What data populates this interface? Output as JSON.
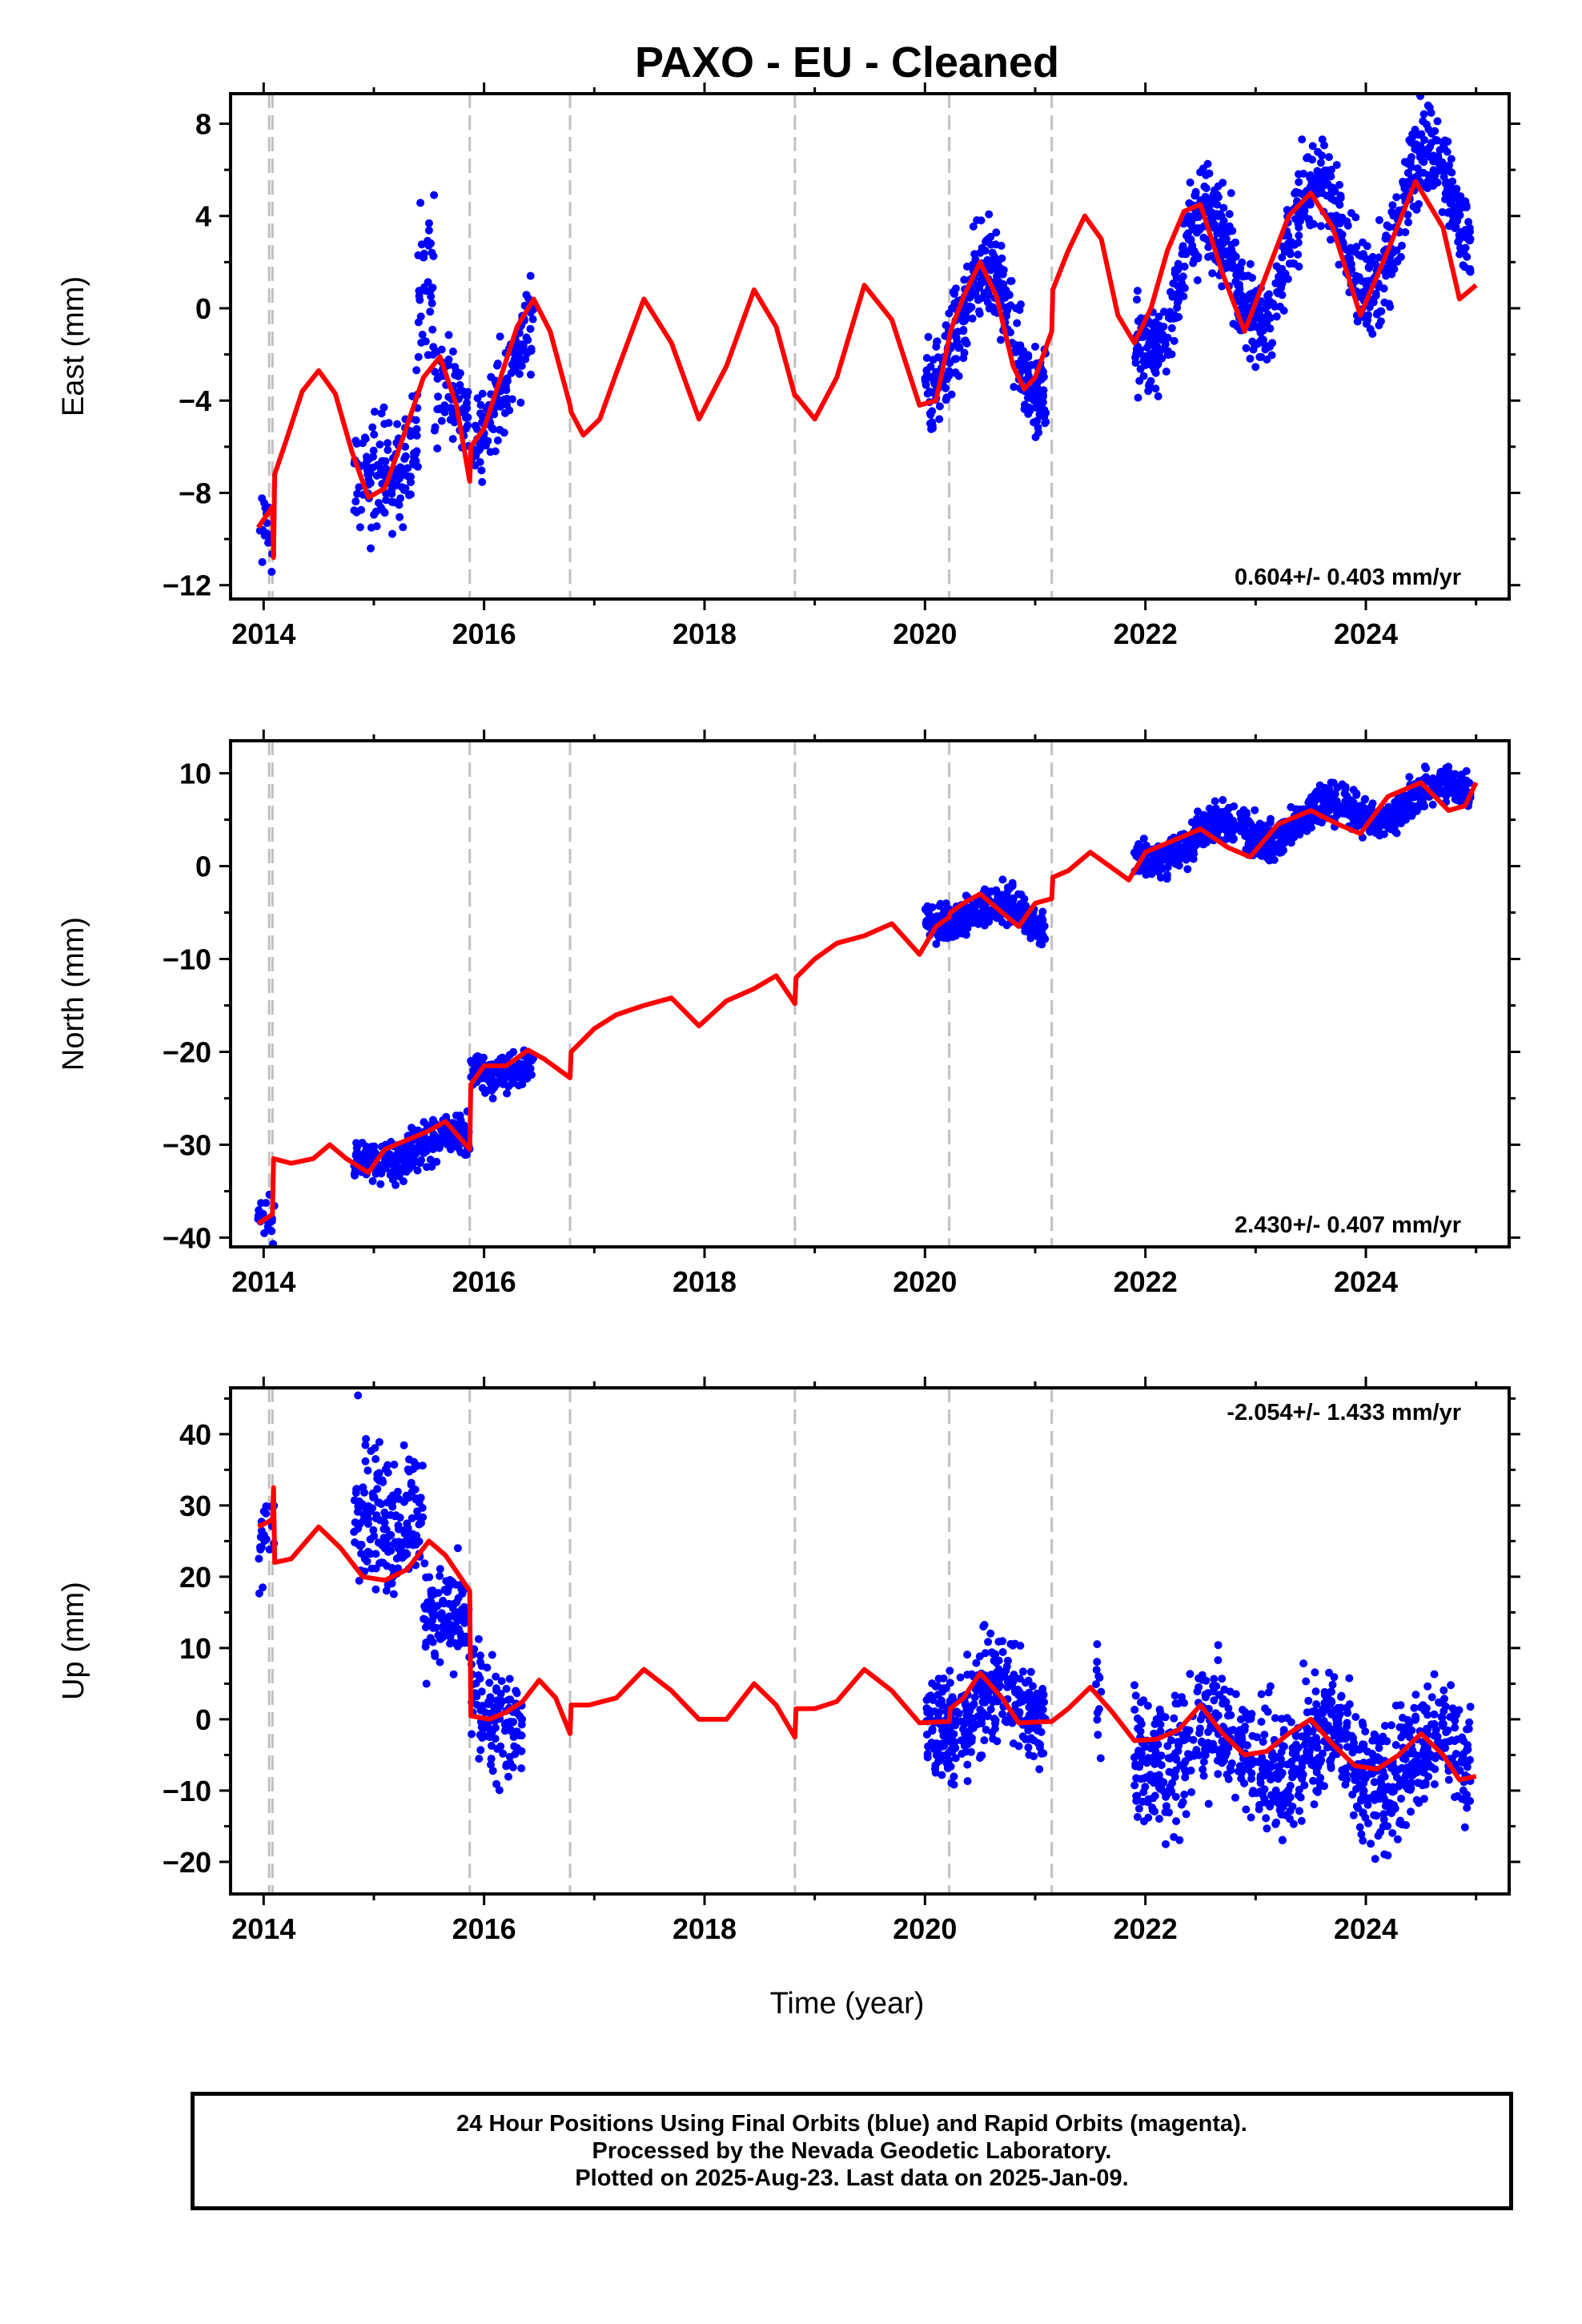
{
  "title": "PAXO  - EU - Cleaned",
  "xlabel": "Time (year)",
  "footer": {
    "line1": "24 Hour Positions Using Final Orbits (blue) and Rapid Orbits (magenta).",
    "line2": "Processed by the Nevada Geodetic Laboratory.",
    "line3": "Plotted on 2025-Aug-23. Last data on 2025-Jan-09."
  },
  "colors": {
    "data_points": "#0000ff",
    "model_line": "#ff0000",
    "event_lines": "#c0c0c0",
    "frame": "#000000"
  },
  "chart_data": [
    {
      "type": "scatter",
      "panel": "east",
      "ylabel": "East (mm)",
      "rate": "0.604+/- 0.403 mm/yr",
      "rate_position": "bottom-right",
      "xlim": [
        2013.7,
        2025.3
      ],
      "ylim": [
        -12.6,
        9.3
      ],
      "xticks": [
        2014,
        2016,
        2018,
        2020,
        2022,
        2024
      ],
      "yticks": [
        8,
        4,
        0,
        -4,
        -8,
        -12
      ],
      "ytick_labels": [
        "8",
        "4",
        "0",
        "−4",
        "−8",
        "−12"
      ],
      "event_lines": [
        2014.05,
        2014.08,
        2015.87,
        2016.78,
        2018.82,
        2020.22,
        2021.15
      ],
      "data_segments": [
        {
          "x0": 2013.95,
          "x1": 2014.1,
          "base": -9.5,
          "slope": 0,
          "amp": 0.6,
          "phase": 0.5,
          "noise": 1.0,
          "n": 18
        },
        {
          "x0": 2014.82,
          "x1": 2015.4,
          "base": -8.5,
          "slope": 6.0,
          "amp": 0.8,
          "phase": 0.5,
          "noise": 1.3,
          "n": 130
        },
        {
          "x0": 2015.4,
          "x1": 2015.55,
          "base": 1.5,
          "slope": 0,
          "amp": 0.5,
          "phase": 0.5,
          "noise": 1.6,
          "n": 35
        },
        {
          "x0": 2015.55,
          "x1": 2016.0,
          "base": -3.5,
          "slope": -5.0,
          "amp": 0.5,
          "phase": 0.5,
          "noise": 1.2,
          "n": 90
        },
        {
          "x0": 2015.98,
          "x1": 2016.45,
          "base": -5.5,
          "slope": 12.0,
          "amp": 0.4,
          "phase": 0.5,
          "noise": 1.0,
          "n": 110
        },
        {
          "x0": 2020.0,
          "x1": 2021.1,
          "base": -1.0,
          "slope": 0,
          "amp": 2.7,
          "phase": 0.3,
          "noise": 1.0,
          "n": 360
        },
        {
          "x0": 2021.9,
          "x1": 2024.95,
          "base": 0.5,
          "slope": 1.4,
          "amp": 2.8,
          "phase": 0.3,
          "noise": 1.0,
          "n": 900
        }
      ],
      "model": {
        "x": [
          2013.95,
          2014.08,
          2014.09,
          2014.1,
          2014.2,
          2014.35,
          2014.5,
          2014.65,
          2014.8,
          2014.95,
          2015.1,
          2015.25,
          2015.45,
          2015.6,
          2015.75,
          2015.87,
          2015.88,
          2016.0,
          2016.15,
          2016.3,
          2016.45,
          2016.6,
          2016.78,
          2016.79,
          2016.9,
          2017.05,
          2017.2,
          2017.45,
          2017.7,
          2017.95,
          2018.2,
          2018.45,
          2018.65,
          2018.82,
          2018.83,
          2019.0,
          2019.2,
          2019.45,
          2019.7,
          2019.95,
          2020.1,
          2020.22,
          2020.23,
          2020.35,
          2020.5,
          2020.65,
          2020.8,
          2020.9,
          2021.0,
          2021.15,
          2021.16,
          2021.3,
          2021.45,
          2021.6,
          2021.75,
          2021.9,
          2022.05,
          2022.2,
          2022.35,
          2022.5,
          2022.7,
          2022.9,
          2023.1,
          2023.3,
          2023.5,
          2023.7,
          2023.95,
          2024.2,
          2024.45,
          2024.7,
          2024.85,
          2025.0
        ],
        "y": [
          -9.5,
          -8.6,
          -10.8,
          -7.2,
          -5.8,
          -3.6,
          -2.7,
          -3.7,
          -6.2,
          -8.2,
          -7.8,
          -5.8,
          -3.0,
          -2.1,
          -4.2,
          -7.5,
          -6.0,
          -5.2,
          -3.0,
          -0.8,
          0.4,
          -1.0,
          -4.2,
          -4.5,
          -5.5,
          -4.8,
          -2.8,
          0.4,
          -1.5,
          -4.8,
          -2.5,
          0.8,
          -0.8,
          -3.8,
          -3.8,
          -4.8,
          -3.0,
          1.0,
          -0.5,
          -4.2,
          -4.0,
          -1.3,
          -1.0,
          0.5,
          2.0,
          0.5,
          -2.5,
          -3.5,
          -3.0,
          -1.0,
          0.8,
          2.5,
          4.0,
          3.0,
          -0.3,
          -1.5,
          0.0,
          2.5,
          4.2,
          4.5,
          1.5,
          -1.0,
          1.5,
          4.0,
          5.0,
          3.5,
          -0.3,
          2.5,
          5.5,
          3.5,
          0.4,
          1.0
        ]
      }
    },
    {
      "type": "scatter",
      "panel": "north",
      "ylabel": "North (mm)",
      "rate": "2.430+/- 0.407 mm/yr",
      "rate_position": "bottom-right",
      "xlim": [
        2013.7,
        2025.3
      ],
      "ylim": [
        -41,
        13.5
      ],
      "xticks": [
        2014,
        2016,
        2018,
        2020,
        2022,
        2024
      ],
      "yticks": [
        10,
        0,
        -10,
        -20,
        -30,
        -40
      ],
      "ytick_labels": [
        "10",
        "0",
        "−10",
        "−20",
        "−30",
        "−40"
      ],
      "event_lines": [
        2014.05,
        2014.08,
        2015.87,
        2016.78,
        2018.82,
        2020.22,
        2021.15
      ],
      "data_segments": [
        {
          "x0": 2013.95,
          "x1": 2014.1,
          "base": -38.0,
          "slope": 0,
          "amp": 0.5,
          "phase": 0.5,
          "noise": 1.0,
          "n": 18
        },
        {
          "x0": 2014.82,
          "x1": 2015.87,
          "base": -31.5,
          "slope": 2.0,
          "amp": 1.0,
          "phase": 0.4,
          "noise": 1.2,
          "n": 270
        },
        {
          "x0": 2015.88,
          "x1": 2016.45,
          "base": -22.0,
          "slope": 1.5,
          "amp": 0.8,
          "phase": 0.4,
          "noise": 1.0,
          "n": 140
        },
        {
          "x0": 2020.0,
          "x1": 2021.1,
          "base": -4.8,
          "slope": -0.8,
          "amp": 1.3,
          "phase": 0.4,
          "noise": 1.0,
          "n": 360
        },
        {
          "x0": 2021.9,
          "x1": 2024.95,
          "base": 1.5,
          "slope": 2.2,
          "amp": 1.5,
          "phase": 0.4,
          "noise": 1.0,
          "n": 900
        }
      ],
      "model": {
        "x": [
          2013.95,
          2014.08,
          2014.09,
          2014.25,
          2014.45,
          2014.6,
          2014.75,
          2014.95,
          2015.1,
          2015.3,
          2015.5,
          2015.65,
          2015.87,
          2015.88,
          2016.0,
          2016.2,
          2016.4,
          2016.55,
          2016.78,
          2016.79,
          2017.0,
          2017.2,
          2017.45,
          2017.7,
          2017.95,
          2018.2,
          2018.45,
          2018.65,
          2018.82,
          2018.83,
          2019.0,
          2019.2,
          2019.45,
          2019.7,
          2019.95,
          2020.1,
          2020.22,
          2020.23,
          2020.35,
          2020.5,
          2020.7,
          2020.85,
          2021.0,
          2021.15,
          2021.16,
          2021.3,
          2021.5,
          2021.7,
          2021.85,
          2022.0,
          2022.2,
          2022.5,
          2022.75,
          2022.95,
          2023.2,
          2023.5,
          2023.75,
          2023.95,
          2024.2,
          2024.5,
          2024.75,
          2024.9,
          2025.0
        ],
        "y": [
          -38.5,
          -37.5,
          -31.5,
          -32.0,
          -31.5,
          -30.0,
          -31.5,
          -33.0,
          -30.5,
          -29.5,
          -28.5,
          -27.5,
          -30.5,
          -23.5,
          -21.5,
          -21.5,
          -19.8,
          -20.8,
          -22.8,
          -20.0,
          -17.5,
          -16.0,
          -15.0,
          -14.2,
          -17.2,
          -14.5,
          -13.2,
          -11.8,
          -14.8,
          -12.0,
          -10.0,
          -8.3,
          -7.5,
          -6.2,
          -9.5,
          -6.5,
          -5.5,
          -5.0,
          -4.0,
          -3.0,
          -5.0,
          -6.5,
          -4.0,
          -3.5,
          -1.2,
          -0.5,
          1.5,
          -0.2,
          -1.5,
          1.5,
          2.5,
          4.0,
          2.0,
          1.0,
          4.5,
          6.0,
          4.5,
          3.5,
          7.5,
          9.0,
          6.0,
          6.5,
          9.0
        ]
      }
    },
    {
      "type": "scatter",
      "panel": "up",
      "ylabel": "Up (mm)",
      "rate": "-2.054+/- 1.433 mm/yr",
      "rate_position": "top-right",
      "xlim": [
        2013.7,
        2025.3
      ],
      "ylim": [
        -24.5,
        46.5
      ],
      "xticks": [
        2014,
        2016,
        2018,
        2020,
        2022,
        2024
      ],
      "yticks": [
        40,
        30,
        20,
        10,
        0,
        -10,
        -20
      ],
      "ytick_labels": [
        "40",
        "30",
        "20",
        "10",
        "0",
        "−10",
        "−20"
      ],
      "event_lines": [
        2014.05,
        2014.08,
        2015.87,
        2016.78,
        2018.82,
        2020.22,
        2021.15
      ],
      "data_segments": [
        {
          "x0": 2013.95,
          "x1": 2014.1,
          "base": 26.0,
          "slope": 0,
          "amp": 1.5,
          "phase": 0.5,
          "noise": 4.0,
          "n": 20
        },
        {
          "x0": 2014.82,
          "x1": 2015.45,
          "base": 29.0,
          "slope": 2.0,
          "amp": 2.5,
          "phase": 0.5,
          "noise": 5.0,
          "n": 180
        },
        {
          "x0": 2015.45,
          "x1": 2015.87,
          "base": 14.0,
          "slope": -8.0,
          "amp": 2.0,
          "phase": 0.5,
          "noise": 3.5,
          "n": 110
        },
        {
          "x0": 2015.88,
          "x1": 2016.35,
          "base": 1.5,
          "slope": 0,
          "amp": 2.0,
          "phase": 0.5,
          "noise": 4.0,
          "n": 120
        },
        {
          "x0": 2020.0,
          "x1": 2021.1,
          "base": 1.5,
          "slope": 0,
          "amp": 3.5,
          "phase": 0.4,
          "noise": 4.0,
          "n": 360
        },
        {
          "x0": 2021.55,
          "x1": 2021.6,
          "base": 4.0,
          "slope": 0,
          "amp": 0,
          "phase": 0.4,
          "noise": 4.0,
          "n": 12
        },
        {
          "x0": 2021.9,
          "x1": 2024.95,
          "base": -3.0,
          "slope": -1.2,
          "amp": 3.5,
          "phase": 0.4,
          "noise": 4.5,
          "n": 900
        }
      ],
      "model": {
        "x": [
          2013.95,
          2014.08,
          2014.09,
          2014.1,
          2014.25,
          2014.5,
          2014.7,
          2014.9,
          2015.1,
          2015.3,
          2015.5,
          2015.65,
          2015.87,
          2015.88,
          2016.05,
          2016.2,
          2016.35,
          2016.5,
          2016.65,
          2016.78,
          2016.79,
          2016.95,
          2017.2,
          2017.45,
          2017.7,
          2017.95,
          2018.2,
          2018.45,
          2018.65,
          2018.82,
          2018.83,
          2019.0,
          2019.2,
          2019.45,
          2019.7,
          2019.95,
          2020.22,
          2020.23,
          2020.35,
          2020.5,
          2020.7,
          2020.85,
          2021.15,
          2021.3,
          2021.5,
          2021.7,
          2021.9,
          2022.1,
          2022.3,
          2022.5,
          2022.7,
          2022.9,
          2023.1,
          2023.3,
          2023.5,
          2023.7,
          2023.9,
          2024.1,
          2024.3,
          2024.5,
          2024.7,
          2024.85,
          2025.0
        ],
        "y": [
          27.0,
          28.0,
          32.5,
          22.0,
          22.5,
          27.0,
          24.0,
          20.0,
          19.5,
          21.0,
          25.0,
          23.0,
          18.0,
          0.5,
          0.0,
          1.0,
          2.5,
          5.5,
          3.0,
          -2.0,
          2.0,
          2.0,
          3.0,
          7.0,
          4.0,
          0.0,
          0.0,
          5.0,
          2.0,
          -2.5,
          1.5,
          1.5,
          2.5,
          7.0,
          4.0,
          -0.5,
          -0.3,
          1.5,
          3.0,
          6.5,
          3.0,
          -0.5,
          -0.3,
          1.5,
          4.5,
          1.0,
          -3.0,
          -2.8,
          -1.5,
          2.0,
          -2.0,
          -5.0,
          -4.5,
          -2.0,
          0.0,
          -3.5,
          -6.5,
          -7.0,
          -5.0,
          -2.0,
          -5.0,
          -8.5,
          -8.0
        ]
      }
    }
  ]
}
